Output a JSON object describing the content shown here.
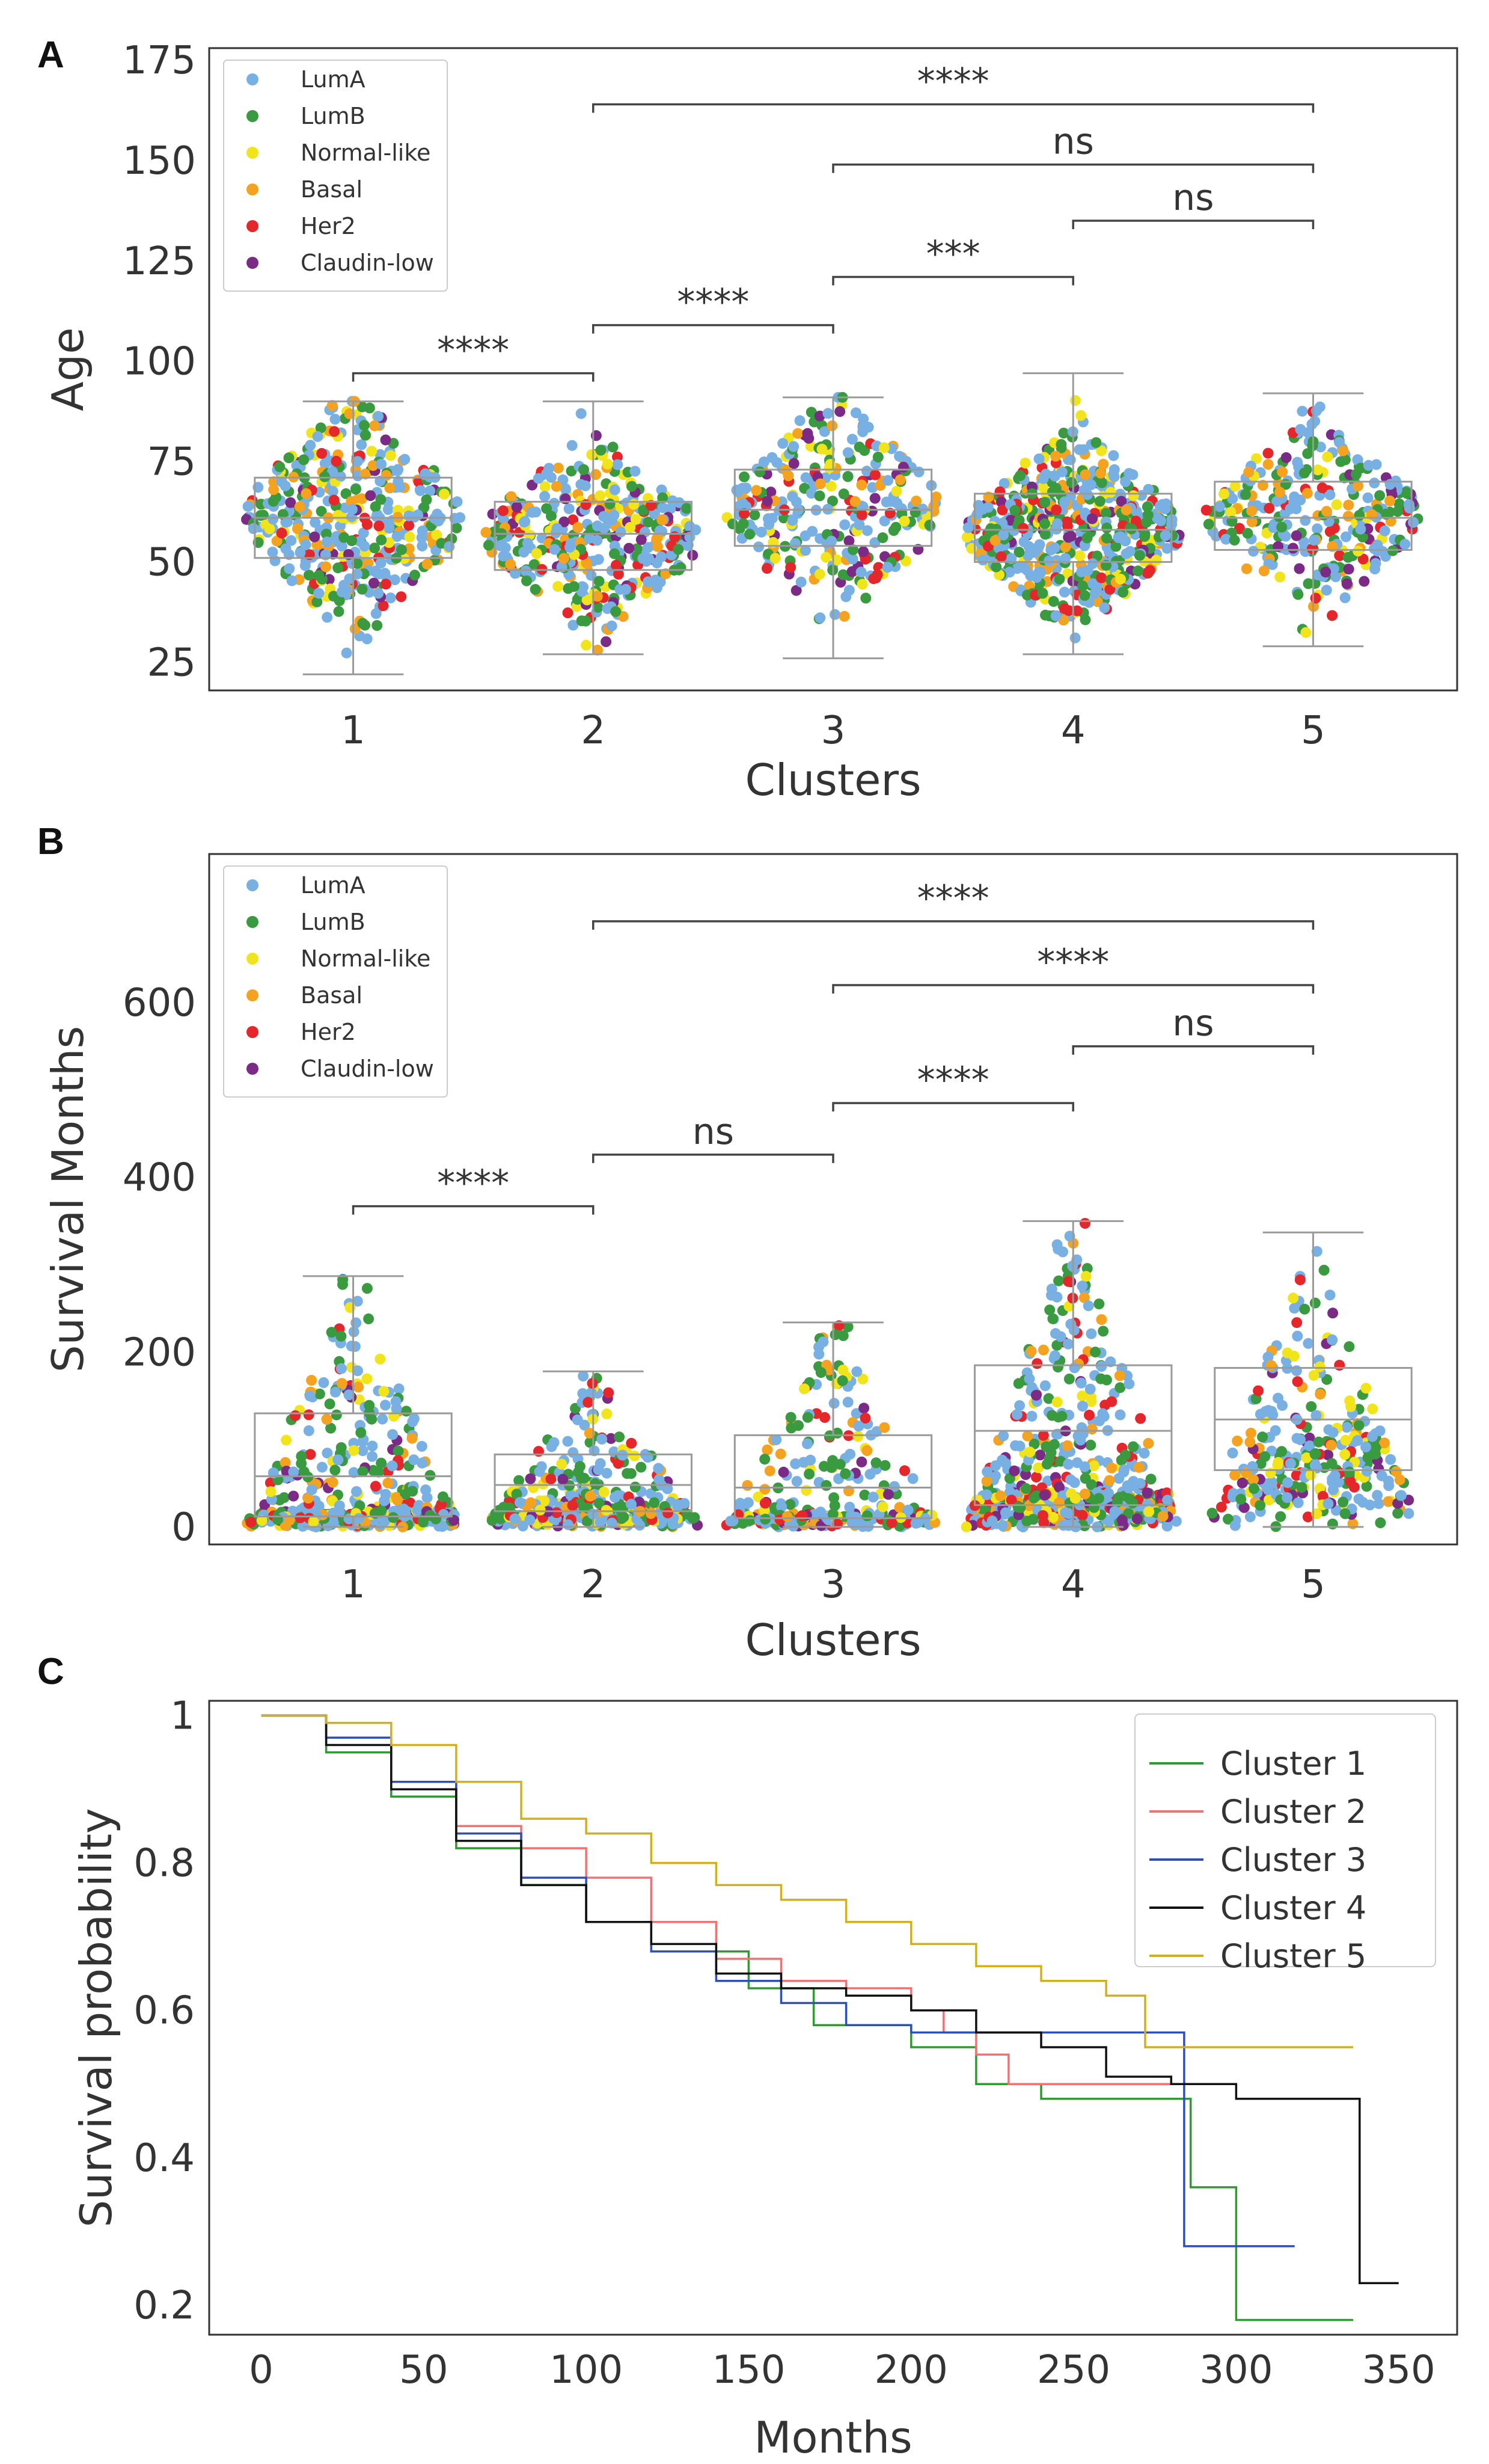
{
  "figure": {
    "panels": [
      "A",
      "B",
      "C"
    ]
  },
  "colors": {
    "LumA": "#79b0e3",
    "LumB": "#3a9a3f",
    "Normal-like": "#f2e41a",
    "Basal": "#f5a21f",
    "Her2": "#e5262b",
    "Claudin-low": "#7b2a86",
    "Cluster 1": "#2f9a2f",
    "Cluster 2": "#f07272",
    "Cluster 3": "#2c4fba",
    "Cluster 4": "#111111",
    "Cluster 5": "#d1b01a"
  },
  "chart_data": [
    {
      "panel": "A",
      "type": "box-swarm",
      "title": "",
      "xlabel": "Clusters",
      "ylabel": "Age",
      "categories": [
        "1",
        "2",
        "3",
        "4",
        "5"
      ],
      "ylim": [
        18,
        178
      ],
      "yticks": [
        25,
        50,
        75,
        100,
        125,
        150,
        175
      ],
      "legend": [
        "LumA",
        "LumB",
        "Normal-like",
        "Basal",
        "Her2",
        "Claudin-low"
      ],
      "legend_position": "top-left",
      "boxes": [
        {
          "cluster": "1",
          "whislo": 22,
          "q1": 51,
          "median": 61,
          "q3": 71,
          "whishi": 90,
          "n": 420
        },
        {
          "cluster": "2",
          "whislo": 27,
          "q1": 48,
          "median": 57,
          "q3": 65,
          "whishi": 90,
          "n": 380
        },
        {
          "cluster": "3",
          "whislo": 26,
          "q1": 54,
          "median": 63,
          "q3": 73,
          "whishi": 91,
          "n": 290
        },
        {
          "cluster": "4",
          "whislo": 27,
          "q1": 50,
          "median": 58,
          "q3": 67,
          "whishi": 97,
          "n": 560
        },
        {
          "cluster": "5",
          "whislo": 29,
          "q1": 53,
          "median": 61,
          "q3": 70,
          "whishi": 92,
          "n": 300
        }
      ],
      "comparisons": [
        {
          "from": "1",
          "to": "2",
          "level": 97,
          "label": "****"
        },
        {
          "from": "2",
          "to": "3",
          "level": 109,
          "label": "****"
        },
        {
          "from": "3",
          "to": "4",
          "level": 121,
          "label": "***"
        },
        {
          "from": "4",
          "to": "5",
          "level": 135,
          "label": "ns"
        },
        {
          "from": "3",
          "to": "5",
          "level": 149,
          "label": "ns"
        },
        {
          "from": "2",
          "to": "5",
          "level": 164,
          "label": "****"
        }
      ]
    },
    {
      "panel": "B",
      "type": "box-swarm",
      "title": "",
      "xlabel": "Clusters",
      "ylabel": "Survival Months",
      "categories": [
        "1",
        "2",
        "3",
        "4",
        "5"
      ],
      "ylim": [
        -20,
        770
      ],
      "yticks": [
        0,
        200,
        400,
        600
      ],
      "legend": [
        "LumA",
        "LumB",
        "Normal-like",
        "Basal",
        "Her2",
        "Claudin-low"
      ],
      "legend_position": "top-left",
      "boxes": [
        {
          "cluster": "1",
          "whislo": 0,
          "q1": 12,
          "median": 58,
          "q3": 130,
          "whishi": 287,
          "n": 440
        },
        {
          "cluster": "2",
          "whislo": 0,
          "q1": 18,
          "median": 48,
          "q3": 83,
          "whishi": 178,
          "n": 370
        },
        {
          "cluster": "3",
          "whislo": 0,
          "q1": 10,
          "median": 45,
          "q3": 105,
          "whishi": 234,
          "n": 280
        },
        {
          "cluster": "4",
          "whislo": 0,
          "q1": 25,
          "median": 110,
          "q3": 185,
          "whishi": 350,
          "n": 600
        },
        {
          "cluster": "5",
          "whislo": 0,
          "q1": 65,
          "median": 123,
          "q3": 182,
          "whishi": 337,
          "n": 300
        }
      ],
      "comparisons": [
        {
          "from": "1",
          "to": "2",
          "level": 367,
          "label": "****"
        },
        {
          "from": "2",
          "to": "3",
          "level": 426,
          "label": "ns"
        },
        {
          "from": "3",
          "to": "4",
          "level": 485,
          "label": "****"
        },
        {
          "from": "4",
          "to": "5",
          "level": 550,
          "label": "ns"
        },
        {
          "from": "3",
          "to": "5",
          "level": 620,
          "label": "****"
        },
        {
          "from": "2",
          "to": "5",
          "level": 693,
          "label": "****"
        }
      ]
    },
    {
      "panel": "C",
      "type": "line",
      "subtype": "kaplan-meier step",
      "title": "",
      "xlabel": "Months",
      "ylabel": "Survival probability",
      "xlim": [
        -16,
        368
      ],
      "ylim": [
        0.16,
        1.02
      ],
      "xticks": [
        0,
        50,
        100,
        150,
        200,
        250,
        300,
        350
      ],
      "yticks": [
        0.2,
        0.4,
        0.6,
        0.8,
        1.0
      ],
      "legend_position": "top-right",
      "series": [
        {
          "name": "Cluster 1",
          "x": [
            0,
            20,
            40,
            60,
            80,
            100,
            120,
            150,
            170,
            200,
            220,
            240,
            260,
            282,
            286,
            300,
            320,
            336
          ],
          "y": [
            1.0,
            0.95,
            0.89,
            0.82,
            0.77,
            0.72,
            0.68,
            0.63,
            0.58,
            0.55,
            0.5,
            0.48,
            0.48,
            0.48,
            0.36,
            0.18,
            0.18,
            0.18
          ]
        },
        {
          "name": "Cluster 2",
          "x": [
            0,
            20,
            40,
            60,
            80,
            100,
            120,
            140,
            160,
            180,
            200,
            210,
            220,
            230,
            250,
            270,
            288
          ],
          "y": [
            1.0,
            0.97,
            0.91,
            0.85,
            0.82,
            0.78,
            0.72,
            0.67,
            0.64,
            0.63,
            0.6,
            0.57,
            0.54,
            0.5,
            0.5,
            0.5,
            0.5
          ]
        },
        {
          "name": "Cluster 3",
          "x": [
            0,
            20,
            40,
            60,
            80,
            100,
            120,
            140,
            160,
            180,
            200,
            230,
            260,
            282,
            284,
            300,
            318
          ],
          "y": [
            1.0,
            0.97,
            0.91,
            0.84,
            0.78,
            0.72,
            0.68,
            0.64,
            0.61,
            0.58,
            0.57,
            0.57,
            0.57,
            0.57,
            0.28,
            0.28,
            0.28
          ]
        },
        {
          "name": "Cluster 4",
          "x": [
            0,
            20,
            40,
            60,
            80,
            100,
            120,
            140,
            160,
            180,
            200,
            220,
            240,
            260,
            280,
            300,
            320,
            336,
            338,
            350
          ],
          "y": [
            1.0,
            0.96,
            0.9,
            0.83,
            0.77,
            0.72,
            0.69,
            0.65,
            0.63,
            0.62,
            0.6,
            0.57,
            0.55,
            0.51,
            0.5,
            0.48,
            0.48,
            0.48,
            0.23,
            0.23
          ]
        },
        {
          "name": "Cluster 5",
          "x": [
            0,
            20,
            40,
            60,
            80,
            100,
            120,
            140,
            160,
            180,
            200,
            220,
            240,
            260,
            270,
            272,
            300,
            336
          ],
          "y": [
            1.0,
            0.99,
            0.96,
            0.91,
            0.86,
            0.84,
            0.8,
            0.77,
            0.75,
            0.72,
            0.69,
            0.66,
            0.64,
            0.62,
            0.62,
            0.55,
            0.55,
            0.55
          ]
        }
      ]
    }
  ]
}
